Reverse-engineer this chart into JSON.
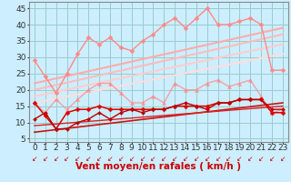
{
  "background_color": "#cceeff",
  "grid_color": "#99cccc",
  "xlim": [
    -0.5,
    23.5
  ],
  "ylim": [
    4,
    47
  ],
  "yticks": [
    5,
    10,
    15,
    20,
    25,
    30,
    35,
    40,
    45
  ],
  "xticks": [
    0,
    1,
    2,
    3,
    4,
    5,
    6,
    7,
    8,
    9,
    10,
    11,
    12,
    13,
    14,
    15,
    16,
    17,
    18,
    19,
    20,
    21,
    22,
    23
  ],
  "xlabel": "Vent moyen/en rafales ( km/h )",
  "xlabel_color": "#cc0000",
  "xlabel_fontsize": 7.5,
  "tick_fontsize": 6.5,
  "series": [
    {
      "x": [
        0,
        1,
        2,
        3,
        4,
        5,
        6,
        7,
        8,
        9,
        10,
        11,
        12,
        13,
        14,
        15,
        16,
        17,
        18,
        19,
        20,
        21,
        22,
        23
      ],
      "y": [
        29,
        24,
        19,
        25,
        31,
        36,
        34,
        36,
        33,
        32,
        35,
        37,
        40,
        42,
        39,
        42,
        45,
        40,
        40,
        41,
        42,
        40,
        26,
        26
      ],
      "color": "#ff8888",
      "alpha": 1.0,
      "linewidth": 1.0,
      "marker": "D",
      "markersize": 2.5,
      "zorder": 3
    },
    {
      "x": [
        0,
        1,
        2,
        3,
        4,
        5,
        6,
        7,
        8,
        9,
        10,
        11,
        12,
        13,
        14,
        15,
        16,
        17,
        18,
        19,
        20,
        21,
        22,
        23
      ],
      "y": [
        16,
        13,
        17,
        14,
        17,
        20,
        22,
        22,
        19,
        16,
        16,
        18,
        16,
        22,
        20,
        20,
        22,
        23,
        21,
        22,
        23,
        18,
        13,
        14
      ],
      "color": "#ff8888",
      "alpha": 0.75,
      "linewidth": 1.0,
      "marker": "^",
      "markersize": 3,
      "zorder": 3
    },
    {
      "x": [
        0,
        23
      ],
      "y": [
        22,
        39
      ],
      "color": "#ffaaaa",
      "alpha": 1.0,
      "linewidth": 1.5,
      "marker": null,
      "markersize": 0,
      "zorder": 2
    },
    {
      "x": [
        0,
        23
      ],
      "y": [
        20,
        37
      ],
      "color": "#ffbbbb",
      "alpha": 1.0,
      "linewidth": 1.5,
      "marker": null,
      "markersize": 0,
      "zorder": 2
    },
    {
      "x": [
        0,
        23
      ],
      "y": [
        18,
        34
      ],
      "color": "#ffcccc",
      "alpha": 1.0,
      "linewidth": 1.5,
      "marker": null,
      "markersize": 0,
      "zorder": 2
    },
    {
      "x": [
        0,
        23
      ],
      "y": [
        16,
        31
      ],
      "color": "#ffdddd",
      "alpha": 1.0,
      "linewidth": 1.5,
      "marker": null,
      "markersize": 0,
      "zorder": 2
    },
    {
      "x": [
        0,
        1,
        2,
        3,
        4,
        5,
        6,
        7,
        8,
        9,
        10,
        11,
        12,
        13,
        14,
        15,
        16,
        17,
        18,
        19,
        20,
        21,
        22,
        23
      ],
      "y": [
        16,
        12,
        8,
        13,
        14,
        14,
        15,
        14,
        14,
        14,
        14,
        14,
        14,
        15,
        15,
        15,
        15,
        16,
        16,
        17,
        17,
        17,
        13,
        13
      ],
      "color": "#dd0000",
      "alpha": 1.0,
      "linewidth": 1.1,
      "marker": "D",
      "markersize": 2.5,
      "zorder": 4
    },
    {
      "x": [
        0,
        1,
        2,
        3,
        4,
        5,
        6,
        7,
        8,
        9,
        10,
        11,
        12,
        13,
        14,
        15,
        16,
        17,
        18,
        19,
        20,
        21,
        22,
        23
      ],
      "y": [
        11,
        13,
        8,
        8,
        10,
        11,
        13,
        11,
        13,
        14,
        13,
        14,
        14,
        15,
        16,
        15,
        14,
        16,
        16,
        17,
        17,
        17,
        14,
        14
      ],
      "color": "#bb0000",
      "alpha": 1.0,
      "linewidth": 1.0,
      "marker": "D",
      "markersize": 2,
      "zorder": 4
    },
    {
      "x": [
        0,
        23
      ],
      "y": [
        7,
        16
      ],
      "color": "#cc1111",
      "alpha": 1.0,
      "linewidth": 1.2,
      "marker": null,
      "markersize": 0,
      "zorder": 3
    },
    {
      "x": [
        0,
        23
      ],
      "y": [
        9,
        15
      ],
      "color": "#dd2222",
      "alpha": 1.0,
      "linewidth": 1.0,
      "marker": null,
      "markersize": 0,
      "zorder": 3
    }
  ],
  "arrow_char": "↙",
  "arrow_color": "#cc0000",
  "arrow_fontsize": 5.5
}
